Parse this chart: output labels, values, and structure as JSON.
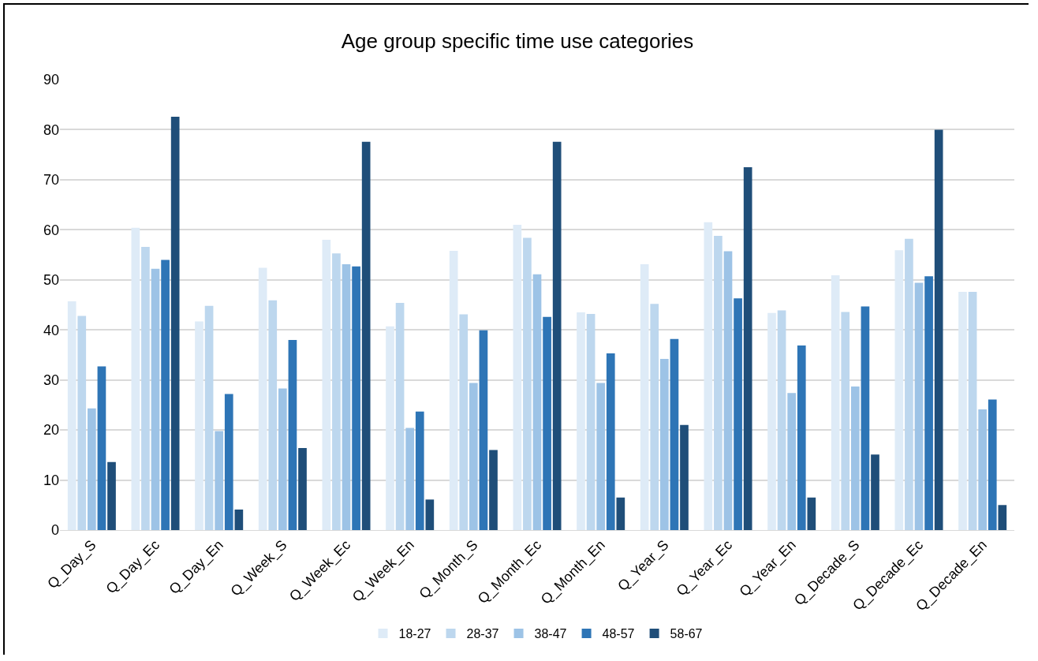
{
  "chart_data": {
    "type": "bar",
    "title": "Age group specific time use categories",
    "categories": [
      "Q_Day_S",
      "Q_Day_Ec",
      "Q_Day_En",
      "Q_Week_S",
      "Q_Week_Ec",
      "Q_Week_En",
      "Q_Month_S",
      "Q_Month_Ec",
      "Q_Month_En",
      "Q_Year_S",
      "Q_Year_Ec",
      "Q_Year_En",
      "Q_Decade_S",
      "Q_Decade_Ec",
      "Q_Decade_En"
    ],
    "series": [
      {
        "name": "18-27",
        "color": "#deebf7",
        "values": [
          45.7,
          60.4,
          41.7,
          52.4,
          58.0,
          40.7,
          55.8,
          61.0,
          43.5,
          53.1,
          61.5,
          43.4,
          50.9,
          55.9,
          47.6
        ]
      },
      {
        "name": "28-37",
        "color": "#bdd7ee",
        "values": [
          42.8,
          56.6,
          44.8,
          45.9,
          55.3,
          45.4,
          43.1,
          58.4,
          43.2,
          45.2,
          58.8,
          43.9,
          43.6,
          58.2,
          47.6
        ]
      },
      {
        "name": "38-47",
        "color": "#9dc3e6",
        "values": [
          24.3,
          52.2,
          19.8,
          28.3,
          53.1,
          20.4,
          29.4,
          51.1,
          29.4,
          34.2,
          55.7,
          27.4,
          28.7,
          49.4,
          24.1
        ]
      },
      {
        "name": "48-57",
        "color": "#2e75b6",
        "values": [
          32.7,
          54.0,
          27.2,
          38.0,
          52.7,
          23.7,
          39.9,
          42.6,
          35.3,
          38.2,
          46.3,
          36.9,
          44.7,
          50.7,
          26.1
        ]
      },
      {
        "name": "58-67",
        "color": "#1f4e79",
        "values": [
          13.6,
          82.6,
          4.1,
          16.4,
          77.6,
          6.1,
          16.0,
          77.6,
          6.5,
          21.0,
          72.5,
          6.5,
          15.1,
          80.0,
          5.0
        ]
      }
    ],
    "ylim": [
      0,
      90
    ],
    "yticks": [
      0,
      10,
      20,
      30,
      40,
      50,
      60,
      70,
      80,
      90
    ],
    "grid": "y",
    "legend": "bottom"
  }
}
